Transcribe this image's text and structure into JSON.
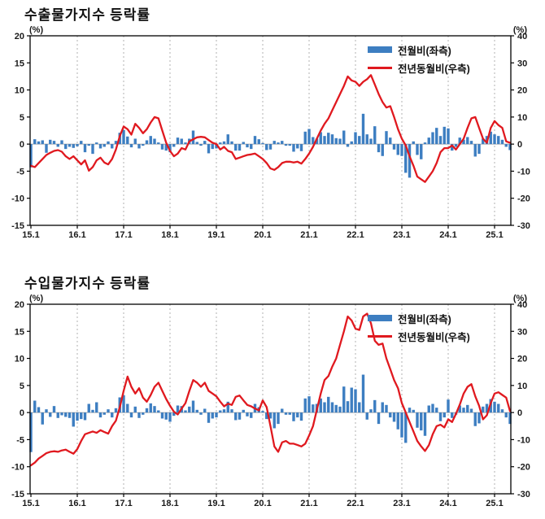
{
  "style": {
    "bar_color": "#3D7EC1",
    "line_color": "#E0191F",
    "axis_color": "#000000",
    "grid_color": "#b0b0b0",
    "zero_line_color": "#909090",
    "tick_label_color": "#1a1a1a"
  },
  "chart_data": [
    {
      "type": "bar",
      "title": "수출물가지수 등락률",
      "unit_left": "(%)",
      "unit_right": "(%)",
      "ylim_left": [
        -15,
        20
      ],
      "yticks_left": [
        20,
        15,
        10,
        5,
        0,
        -5,
        -10,
        -15
      ],
      "ylim_right": [
        -30,
        40
      ],
      "yticks_right": [
        40,
        30,
        20,
        10,
        0,
        -10,
        -20,
        -30
      ],
      "x_tick_labels": [
        "15.1",
        "16.1",
        "17.1",
        "18.1",
        "19.1",
        "20.1",
        "21.1",
        "22.1",
        "23.1",
        "24.1",
        "25.1"
      ],
      "grid": "vertical-dashed-yearly",
      "legend_position": "top-right-inside",
      "categories": [
        "15.1",
        "15.2",
        "15.3",
        "15.4",
        "15.5",
        "15.6",
        "15.7",
        "15.8",
        "15.9",
        "15.10",
        "15.11",
        "15.12",
        "16.1",
        "16.2",
        "16.3",
        "16.4",
        "16.5",
        "16.6",
        "16.7",
        "16.8",
        "16.9",
        "16.10",
        "16.11",
        "16.12",
        "17.1",
        "17.2",
        "17.3",
        "17.4",
        "17.5",
        "17.6",
        "17.7",
        "17.8",
        "17.9",
        "17.10",
        "17.11",
        "17.12",
        "18.1",
        "18.2",
        "18.3",
        "18.4",
        "18.5",
        "18.6",
        "18.7",
        "18.8",
        "18.9",
        "18.10",
        "18.11",
        "18.12",
        "19.1",
        "19.2",
        "19.3",
        "19.4",
        "19.5",
        "19.6",
        "19.7",
        "19.8",
        "19.9",
        "19.10",
        "19.11",
        "19.12",
        "20.1",
        "20.2",
        "20.3",
        "20.4",
        "20.5",
        "20.6",
        "20.7",
        "20.8",
        "20.9",
        "20.10",
        "20.11",
        "20.12",
        "21.1",
        "21.2",
        "21.3",
        "21.4",
        "21.5",
        "21.6",
        "21.7",
        "21.8",
        "21.9",
        "21.10",
        "21.11",
        "21.12",
        "22.1",
        "22.2",
        "22.3",
        "22.4",
        "22.5",
        "22.6",
        "22.7",
        "22.8",
        "22.9",
        "22.10",
        "22.11",
        "22.12",
        "23.1",
        "23.2",
        "23.3",
        "23.4",
        "23.5",
        "23.6",
        "23.7",
        "23.8",
        "23.9",
        "23.10",
        "23.11",
        "23.12",
        "24.1",
        "24.2",
        "24.3",
        "24.4",
        "24.5",
        "24.6",
        "24.7",
        "24.8",
        "24.9",
        "24.10",
        "24.11",
        "24.12",
        "25.1",
        "25.2",
        "25.3",
        "25.4",
        "25.5"
      ],
      "series": [
        {
          "name": "전월비(좌측)",
          "type": "bar",
          "axis": "left",
          "values": [
            -4.3,
            0.9,
            0.5,
            0.7,
            -1.6,
            0.8,
            0.6,
            -0.5,
            0.7,
            -0.9,
            -0.5,
            -0.7,
            -0.4,
            0.6,
            -1.5,
            -0.3,
            -1.8,
            0.3,
            -0.8,
            -0.5,
            0.5,
            -0.8,
            0.6,
            2.1,
            2.6,
            1.4,
            -0.6,
            1.0,
            -0.8,
            -0.3,
            0.7,
            1.5,
            1.0,
            0.3,
            -1.0,
            -1.2,
            -1.5,
            -0.5,
            1.2,
            1.0,
            0.3,
            1.0,
            2.5,
            0.4,
            -0.3,
            0.6,
            -1.7,
            -0.9,
            -0.8,
            0.3,
            0.5,
            1.8,
            0.5,
            -1.2,
            -1.2,
            0.4,
            -0.6,
            -0.9,
            1.5,
            0.9,
            0.2,
            -1.1,
            -1.0,
            0.6,
            0.3,
            0.6,
            -0.3,
            -0.3,
            -1.4,
            -0.8,
            -1.3,
            2.3,
            2.8,
            1.3,
            1.0,
            2.2,
            1.5,
            2.1,
            1.8,
            1.1,
            1.0,
            2.5,
            -0.5,
            0.5,
            2.2,
            1.5,
            5.6,
            1.8,
            1.0,
            3.3,
            -1.5,
            -2.2,
            2.4,
            1.2,
            -1.0,
            -2.0,
            -2.2,
            -5.3,
            -6.2,
            0.5,
            -2.0,
            -2.8,
            0.3,
            1.2,
            2.2,
            3.0,
            1.5,
            3.2,
            2.9,
            -1.2,
            -0.5,
            1.2,
            0.8,
            1.3,
            0.6,
            -2.3,
            -1.8,
            1.0,
            1.5,
            2.3,
            1.8,
            1.5,
            0.8,
            -0.5,
            -1.1
          ]
        },
        {
          "name": "전년동월비(우측)",
          "type": "line",
          "axis": "right",
          "values": [
            -8.0,
            -8.5,
            -7.0,
            -5.5,
            -4.0,
            -3.2,
            -2.5,
            -2.2,
            -2.8,
            -4.5,
            -5.5,
            -4.5,
            -6.0,
            -7.5,
            -6.0,
            -9.8,
            -8.5,
            -6.0,
            -5.0,
            -6.8,
            -7.5,
            -5.5,
            -2.0,
            3.0,
            6.5,
            5.5,
            3.5,
            7.5,
            6.0,
            4.0,
            5.5,
            8.0,
            10.0,
            9.5,
            5.0,
            0.5,
            -2.5,
            -4.5,
            -3.5,
            -1.5,
            -2.0,
            1.0,
            1.8,
            2.5,
            2.7,
            2.5,
            1.5,
            0.5,
            0.0,
            -2.0,
            -1.0,
            -2.5,
            -3.0,
            -5.5,
            -5.0,
            -4.5,
            -4.0,
            -3.8,
            -3.5,
            -4.5,
            -5.5,
            -7.0,
            -9.0,
            -9.5,
            -8.5,
            -7.0,
            -6.5,
            -6.5,
            -6.8,
            -6.5,
            -7.2,
            -5.5,
            -3.5,
            -1.0,
            2.0,
            5.0,
            7.5,
            9.5,
            12.5,
            15.5,
            18.5,
            21.5,
            25.0,
            23.5,
            23.0,
            21.5,
            23.0,
            24.0,
            25.5,
            22.0,
            18.5,
            15.5,
            13.5,
            14.0,
            10.0,
            5.5,
            2.0,
            -0.5,
            -4.5,
            -8.0,
            -12.0,
            -13.0,
            -14.0,
            -12.0,
            -10.0,
            -7.0,
            -3.0,
            -1.5,
            -1.5,
            -0.5,
            -2.0,
            0.0,
            2.0,
            6.0,
            9.5,
            10.0,
            6.0,
            2.0,
            0.5,
            6.0,
            8.5,
            7.0,
            6.0,
            1.0,
            0.5
          ]
        }
      ]
    },
    {
      "type": "bar",
      "title": "수입물가지수 등락률",
      "unit_left": "(%)",
      "unit_right": "(%)",
      "ylim_left": [
        -15,
        20
      ],
      "yticks_left": [
        20,
        15,
        10,
        5,
        0,
        -5,
        -10,
        -15
      ],
      "ylim_right": [
        -30,
        40
      ],
      "yticks_right": [
        40,
        30,
        20,
        10,
        0,
        -10,
        -20,
        -30
      ],
      "x_tick_labels": [
        "15.1",
        "16.1",
        "17.1",
        "18.1",
        "19.1",
        "20.1",
        "21.1",
        "22.1",
        "23.1",
        "24.1",
        "25.1"
      ],
      "grid": "vertical-dashed-yearly",
      "legend_position": "top-right-inside",
      "categories": [
        "15.1",
        "15.2",
        "15.3",
        "15.4",
        "15.5",
        "15.6",
        "15.7",
        "15.8",
        "15.9",
        "15.10",
        "15.11",
        "15.12",
        "16.1",
        "16.2",
        "16.3",
        "16.4",
        "16.5",
        "16.6",
        "16.7",
        "16.8",
        "16.9",
        "16.10",
        "16.11",
        "16.12",
        "17.1",
        "17.2",
        "17.3",
        "17.4",
        "17.5",
        "17.6",
        "17.7",
        "17.8",
        "17.9",
        "17.10",
        "17.11",
        "17.12",
        "18.1",
        "18.2",
        "18.3",
        "18.4",
        "18.5",
        "18.6",
        "18.7",
        "18.8",
        "18.9",
        "18.10",
        "18.11",
        "18.12",
        "19.1",
        "19.2",
        "19.3",
        "19.4",
        "19.5",
        "19.6",
        "19.7",
        "19.8",
        "19.9",
        "19.10",
        "19.11",
        "19.12",
        "20.1",
        "20.2",
        "20.3",
        "20.4",
        "20.5",
        "20.6",
        "20.7",
        "20.8",
        "20.9",
        "20.10",
        "20.11",
        "20.12",
        "21.1",
        "21.2",
        "21.3",
        "21.4",
        "21.5",
        "21.6",
        "21.7",
        "21.8",
        "21.9",
        "21.10",
        "21.11",
        "21.12",
        "22.1",
        "22.2",
        "22.3",
        "22.4",
        "22.5",
        "22.6",
        "22.7",
        "22.8",
        "22.9",
        "22.10",
        "22.11",
        "22.12",
        "23.1",
        "23.2",
        "23.3",
        "23.4",
        "23.5",
        "23.6",
        "23.7",
        "23.8",
        "23.9",
        "23.10",
        "23.11",
        "23.12",
        "24.1",
        "24.2",
        "24.3",
        "24.4",
        "24.5",
        "24.6",
        "24.7",
        "24.8",
        "24.9",
        "24.10",
        "24.11",
        "24.12",
        "25.1",
        "25.2",
        "25.3",
        "25.4",
        "25.5"
      ],
      "series": [
        {
          "name": "전월비(좌측)",
          "type": "bar",
          "axis": "left",
          "values": [
            -7.3,
            2.2,
            1.0,
            -2.2,
            0.6,
            -0.8,
            1.2,
            -1.0,
            -0.5,
            -0.8,
            -1.0,
            -2.6,
            -1.5,
            -1.2,
            -1.4,
            1.6,
            0.5,
            1.9,
            -0.9,
            -0.4,
            0.6,
            -0.9,
            0.8,
            2.8,
            3.2,
            1.6,
            -0.9,
            1.1,
            -1.0,
            -0.4,
            0.8,
            1.7,
            1.2,
            0.4,
            -1.1,
            -1.3,
            -1.7,
            -0.6,
            1.3,
            1.2,
            0.4,
            1.1,
            2.2,
            0.5,
            -0.4,
            0.7,
            -1.9,
            -1.1,
            -0.9,
            0.4,
            0.6,
            2.0,
            0.6,
            -1.4,
            -1.3,
            0.5,
            -0.7,
            -1.0,
            1.6,
            1.0,
            0.3,
            -1.2,
            -1.1,
            -2.9,
            -2.1,
            0.7,
            -0.4,
            -0.4,
            -1.6,
            -0.9,
            -1.5,
            2.6,
            3.0,
            1.5,
            1.6,
            2.6,
            1.9,
            2.9,
            1.9,
            1.4,
            1.1,
            4.8,
            2.1,
            4.6,
            4.3,
            1.9,
            7.0,
            -1.3,
            0.6,
            2.3,
            -2.1,
            1.9,
            1.4,
            -0.9,
            -1.7,
            -3.1,
            -4.6,
            -5.6,
            0.9,
            0.5,
            -2.8,
            -3.3,
            -4.3,
            1.3,
            1.6,
            0.9,
            -1.6,
            -0.9,
            2.4,
            -1.0,
            -0.4,
            1.3,
            0.9,
            1.4,
            0.7,
            -2.5,
            -2.0,
            1.1,
            1.6,
            2.5,
            2.0,
            1.6,
            0.6,
            -0.9,
            -2.1
          ]
        },
        {
          "name": "전년동월비(우측)",
          "type": "line",
          "axis": "right",
          "values": [
            -19.5,
            -18.5,
            -17.0,
            -16.0,
            -15.0,
            -14.5,
            -14.3,
            -14.5,
            -14.0,
            -13.7,
            -14.5,
            -15.2,
            -13.5,
            -10.5,
            -8.0,
            -7.5,
            -7.0,
            -7.5,
            -6.5,
            -7.2,
            -7.8,
            -5.0,
            -3.0,
            2.0,
            8.0,
            13.3,
            9.5,
            7.0,
            9.0,
            5.5,
            4.0,
            6.5,
            9.5,
            11.0,
            8.0,
            5.0,
            2.5,
            0.3,
            -0.7,
            1.5,
            3.5,
            8.0,
            12.0,
            11.0,
            9.5,
            11.0,
            8.0,
            7.0,
            6.0,
            4.0,
            2.3,
            3.3,
            2.8,
            5.8,
            6.3,
            4.5,
            2.8,
            2.3,
            1.5,
            0.8,
            4.5,
            2.0,
            -5.0,
            -12.5,
            -14.5,
            -11.0,
            -10.5,
            -11.5,
            -11.5,
            -12.0,
            -12.5,
            -11.5,
            -8.5,
            -5.0,
            1.0,
            7.0,
            12.0,
            13.5,
            17.0,
            20.0,
            25.0,
            30.0,
            35.5,
            34.0,
            31.0,
            30.5,
            35.5,
            36.5,
            33.0,
            26.5,
            25.0,
            25.5,
            20.0,
            16.0,
            12.0,
            9.0,
            3.5,
            0.0,
            -3.5,
            -7.0,
            -10.5,
            -12.5,
            -14.2,
            -12.0,
            -8.0,
            -5.0,
            -4.5,
            -5.5,
            -2.5,
            -3.5,
            -0.5,
            3.0,
            7.0,
            9.5,
            10.5,
            6.0,
            2.5,
            -2.5,
            -1.0,
            3.5,
            7.0,
            7.5,
            6.5,
            5.5,
            0.5
          ]
        }
      ]
    }
  ]
}
